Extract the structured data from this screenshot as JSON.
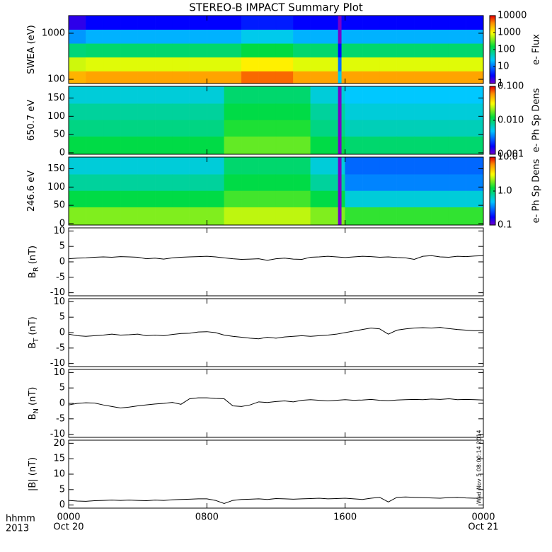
{
  "title": "STEREO-B IMPACT Summary Plot",
  "xaxis": {
    "xlim": [
      0,
      24
    ],
    "xticks": [
      {
        "value": 0,
        "label": "0000"
      },
      {
        "value": 8,
        "label": "0800"
      },
      {
        "value": 16,
        "label": "1600"
      },
      {
        "value": 24,
        "label": "0000"
      }
    ],
    "dates": [
      {
        "value": 0,
        "label": "Oct 20"
      },
      {
        "value": 24,
        "label": "Oct 21"
      }
    ],
    "unit_label": "hhmm",
    "year_label": "2013"
  },
  "stamp": "Wed Nov  5 08:00:14 2014",
  "chart_data": [
    {
      "type": "heatmap",
      "ylabel": "SWEA (eV)",
      "ylog": true,
      "ylim": [
        81,
        2420
      ],
      "yticks": [
        100,
        1000
      ],
      "x_bins": [
        0,
        1,
        2,
        3,
        4,
        5,
        6,
        7,
        8,
        9,
        10,
        11,
        12,
        13,
        14,
        15,
        15.6,
        15.8,
        16,
        17,
        18,
        19,
        20,
        21,
        22,
        23,
        24
      ],
      "y_bins": [
        81,
        150,
        300,
        600,
        1200,
        2420
      ],
      "z": [
        [
          2500,
          700,
          90,
          15,
          2
        ],
        [
          3000,
          800,
          100,
          20,
          3
        ],
        [
          3000,
          800,
          100,
          20,
          3
        ],
        [
          3000,
          800,
          100,
          20,
          3
        ],
        [
          3000,
          800,
          100,
          20,
          3
        ],
        [
          3000,
          800,
          100,
          20,
          3
        ],
        [
          3000,
          800,
          100,
          20,
          3
        ],
        [
          3000,
          800,
          100,
          20,
          3
        ],
        [
          3000,
          800,
          100,
          20,
          3
        ],
        [
          3000,
          800,
          100,
          20,
          3
        ],
        [
          5000,
          1200,
          150,
          30,
          4
        ],
        [
          5000,
          1200,
          150,
          30,
          4
        ],
        [
          5000,
          1200,
          150,
          30,
          4
        ],
        [
          3000,
          800,
          100,
          20,
          3
        ],
        [
          3000,
          800,
          100,
          20,
          3
        ],
        [
          3000,
          800,
          100,
          20,
          3
        ],
        [
          30,
          10,
          3,
          1,
          1
        ],
        [
          3000,
          800,
          100,
          20,
          3
        ],
        [
          3000,
          800,
          100,
          20,
          3
        ],
        [
          3000,
          800,
          100,
          20,
          3
        ],
        [
          3000,
          800,
          100,
          20,
          3
        ],
        [
          3000,
          800,
          100,
          20,
          3
        ],
        [
          3000,
          800,
          100,
          20,
          3
        ],
        [
          3000,
          800,
          100,
          20,
          3
        ],
        [
          3000,
          800,
          100,
          20,
          3
        ],
        [
          3000,
          800,
          100,
          20,
          3
        ]
      ],
      "zlim": [
        1,
        10000
      ],
      "zlog": true,
      "colormap": "rainbow",
      "colorbar_label": "e- Flux",
      "colorbar_ticks": [
        1,
        10,
        100,
        1000,
        10000
      ]
    },
    {
      "type": "heatmap",
      "ylabel": "650.7 eV",
      "ylog": false,
      "ylim": [
        -4,
        182
      ],
      "yticks": [
        0,
        50,
        100,
        150
      ],
      "x_bins": [
        0,
        1,
        2,
        3,
        4,
        5,
        6,
        7,
        8,
        9,
        10,
        11,
        12,
        13,
        14,
        15,
        15.6,
        15.8,
        16,
        17,
        18,
        19,
        20,
        21,
        22,
        23,
        24
      ],
      "y_bins": [
        -4,
        45,
        90,
        135,
        182
      ],
      "z": [
        [
          0.012,
          0.009,
          0.008,
          0.006
        ],
        [
          0.012,
          0.009,
          0.008,
          0.006
        ],
        [
          0.012,
          0.009,
          0.008,
          0.006
        ],
        [
          0.012,
          0.009,
          0.008,
          0.006
        ],
        [
          0.012,
          0.009,
          0.008,
          0.006
        ],
        [
          0.012,
          0.009,
          0.008,
          0.006
        ],
        [
          0.012,
          0.009,
          0.008,
          0.006
        ],
        [
          0.012,
          0.009,
          0.008,
          0.006
        ],
        [
          0.012,
          0.009,
          0.008,
          0.006
        ],
        [
          0.018,
          0.014,
          0.012,
          0.01
        ],
        [
          0.018,
          0.014,
          0.012,
          0.01
        ],
        [
          0.018,
          0.014,
          0.012,
          0.01
        ],
        [
          0.018,
          0.014,
          0.012,
          0.01
        ],
        [
          0.018,
          0.014,
          0.012,
          0.01
        ],
        [
          0.012,
          0.009,
          0.008,
          0.006
        ],
        [
          0.012,
          0.009,
          0.008,
          0.006
        ],
        [
          0.001,
          0.001,
          0.001,
          0.001
        ],
        [
          0.012,
          0.009,
          0.008,
          0.006
        ],
        [
          0.01,
          0.007,
          0.006,
          0.005
        ],
        [
          0.01,
          0.007,
          0.006,
          0.005
        ],
        [
          0.01,
          0.007,
          0.006,
          0.005
        ],
        [
          0.01,
          0.007,
          0.006,
          0.005
        ],
        [
          0.01,
          0.007,
          0.006,
          0.005
        ],
        [
          0.01,
          0.007,
          0.006,
          0.005
        ],
        [
          0.01,
          0.007,
          0.006,
          0.005
        ],
        [
          0.01,
          0.007,
          0.006,
          0.005
        ]
      ],
      "zlim": [
        0.001,
        0.1
      ],
      "zlog": true,
      "colormap": "rainbow",
      "colorbar_label": "e- Ph Sp Dens",
      "colorbar_ticks": [
        {
          "value": 0.001,
          "label": "0.001"
        },
        {
          "value": 0.01,
          "label": "0.010"
        },
        {
          "value": 0.1,
          "label": "0.100"
        }
      ]
    },
    {
      "type": "heatmap",
      "ylabel": "246.6 eV",
      "ylog": false,
      "ylim": [
        -4,
        182
      ],
      "yticks": [
        0,
        50,
        100,
        150
      ],
      "x_bins": [
        0,
        1,
        2,
        3,
        4,
        5,
        6,
        7,
        8,
        9,
        10,
        11,
        12,
        13,
        14,
        15,
        15.6,
        15.8,
        16,
        17,
        18,
        19,
        20,
        21,
        22,
        23,
        24
      ],
      "y_bins": [
        -4,
        45,
        90,
        135,
        182
      ],
      "z": [
        [
          2,
          1.2,
          0.8,
          0.6
        ],
        [
          2,
          1.2,
          0.8,
          0.6
        ],
        [
          2,
          1.2,
          0.8,
          0.6
        ],
        [
          2,
          1.2,
          0.8,
          0.6
        ],
        [
          2,
          1.2,
          0.8,
          0.6
        ],
        [
          2,
          1.2,
          0.8,
          0.6
        ],
        [
          2,
          1.2,
          0.8,
          0.6
        ],
        [
          2,
          1.2,
          0.8,
          0.6
        ],
        [
          2,
          1.2,
          0.8,
          0.6
        ],
        [
          2.5,
          1.6,
          1.2,
          1
        ],
        [
          2.5,
          1.6,
          1.2,
          1
        ],
        [
          2.5,
          1.6,
          1.2,
          1
        ],
        [
          2.5,
          1.6,
          1.2,
          1
        ],
        [
          2.5,
          1.6,
          1.2,
          1
        ],
        [
          2,
          1.2,
          0.8,
          0.6
        ],
        [
          2,
          1.2,
          0.8,
          0.6
        ],
        [
          0.1,
          0.1,
          0.1,
          0.1
        ],
        [
          2,
          1.2,
          0.8,
          0.6
        ],
        [
          1.5,
          0.6,
          0.35,
          0.3
        ],
        [
          1.5,
          0.6,
          0.35,
          0.3
        ],
        [
          1.5,
          0.6,
          0.35,
          0.3
        ],
        [
          1.5,
          0.6,
          0.35,
          0.3
        ],
        [
          1.5,
          0.6,
          0.35,
          0.3
        ],
        [
          1.5,
          0.6,
          0.35,
          0.3
        ],
        [
          1.5,
          0.6,
          0.35,
          0.3
        ],
        [
          1.5,
          0.6,
          0.35,
          0.3
        ]
      ],
      "zlim": [
        0.1,
        10
      ],
      "zlog": true,
      "colormap": "rainbow",
      "colorbar_label": "e- Ph Sp Dens",
      "colorbar_ticks": [
        {
          "value": 0.1,
          "label": "0.1"
        },
        {
          "value": 1,
          "label": "1.0"
        },
        {
          "value": 10,
          "label": "10.0"
        }
      ]
    },
    {
      "type": "line",
      "ylabel": "B",
      "ylabel_sub": "R",
      "ylabel_unit": "(nT)",
      "ylim": [
        -11,
        11
      ],
      "yticks": [
        -10,
        -5,
        0,
        5,
        10
      ],
      "color": "#000000",
      "x": [
        0,
        0.5,
        1,
        1.5,
        2,
        2.5,
        3,
        3.5,
        4,
        4.5,
        5,
        5.5,
        6,
        6.5,
        7,
        7.5,
        8,
        8.5,
        9,
        9.5,
        10,
        10.5,
        11,
        11.5,
        12,
        12.5,
        13,
        13.5,
        14,
        14.5,
        15,
        15.5,
        16,
        16.5,
        17,
        17.5,
        18,
        18.5,
        19,
        19.5,
        20,
        20.5,
        21,
        21.5,
        22,
        22.5,
        23,
        23.5,
        24
      ],
      "values": [
        1.0,
        1.2,
        1.3,
        1.5,
        1.6,
        1.5,
        1.7,
        1.6,
        1.5,
        1.0,
        1.2,
        0.9,
        1.3,
        1.5,
        1.6,
        1.7,
        1.8,
        1.6,
        1.3,
        1.0,
        0.8,
        0.9,
        1.0,
        0.5,
        1.0,
        1.2,
        0.9,
        0.8,
        1.5,
        1.6,
        1.8,
        1.6,
        1.4,
        1.6,
        1.8,
        1.7,
        1.5,
        1.6,
        1.4,
        1.3,
        0.8,
        1.8,
        2.0,
        1.6,
        1.5,
        1.8,
        1.7,
        1.9,
        2.0
      ]
    },
    {
      "type": "line",
      "ylabel": "B",
      "ylabel_sub": "T",
      "ylabel_unit": "(nT)",
      "ylim": [
        -11,
        11
      ],
      "yticks": [
        -10,
        -5,
        0,
        5,
        10
      ],
      "color": "#000000",
      "x": [
        0,
        0.5,
        1,
        1.5,
        2,
        2.5,
        3,
        3.5,
        4,
        4.5,
        5,
        5.5,
        6,
        6.5,
        7,
        7.5,
        8,
        8.5,
        9,
        9.5,
        10,
        10.5,
        11,
        11.5,
        12,
        12.5,
        13,
        13.5,
        14,
        14.5,
        15,
        15.5,
        16,
        16.5,
        17,
        17.5,
        18,
        18.5,
        19,
        19.5,
        20,
        20.5,
        21,
        21.5,
        22,
        22.5,
        23,
        23.5,
        24
      ],
      "values": [
        -0.5,
        -1.0,
        -1.2,
        -1.0,
        -0.8,
        -0.5,
        -0.8,
        -0.7,
        -0.5,
        -1.0,
        -0.8,
        -1.0,
        -0.6,
        -0.3,
        -0.2,
        0.2,
        0.3,
        0.0,
        -0.8,
        -1.2,
        -1.5,
        -1.8,
        -2.0,
        -1.5,
        -1.8,
        -1.4,
        -1.2,
        -1.0,
        -1.2,
        -1.0,
        -0.8,
        -0.5,
        0.0,
        0.5,
        1.0,
        1.5,
        1.2,
        -0.5,
        0.8,
        1.2,
        1.5,
        1.6,
        1.5,
        1.7,
        1.3,
        1.0,
        0.8,
        0.6,
        0.7
      ]
    },
    {
      "type": "line",
      "ylabel": "B",
      "ylabel_sub": "N",
      "ylabel_unit": "(nT)",
      "ylim": [
        -11,
        11
      ],
      "yticks": [
        -10,
        -5,
        0,
        5,
        10
      ],
      "color": "#000000",
      "x": [
        0,
        0.5,
        1,
        1.5,
        2,
        2.5,
        3,
        3.5,
        4,
        4.5,
        5,
        5.5,
        6,
        6.5,
        7,
        7.5,
        8,
        8.5,
        9,
        9.5,
        10,
        10.5,
        11,
        11.5,
        12,
        12.5,
        13,
        13.5,
        14,
        14.5,
        15,
        15.5,
        16,
        16.5,
        17,
        17.5,
        18,
        18.5,
        19,
        19.5,
        20,
        20.5,
        21,
        21.5,
        22,
        22.5,
        23,
        23.5,
        24
      ],
      "values": [
        -0.5,
        0.0,
        0.2,
        0.1,
        -0.5,
        -1.0,
        -1.5,
        -1.2,
        -0.8,
        -0.5,
        -0.2,
        0.0,
        0.3,
        -0.3,
        1.5,
        1.8,
        1.8,
        1.6,
        1.5,
        -0.8,
        -1.0,
        -0.5,
        0.5,
        0.3,
        0.6,
        0.8,
        0.5,
        1.0,
        1.2,
        1.0,
        0.8,
        1.0,
        1.2,
        1.0,
        1.1,
        1.3,
        1.0,
        0.9,
        1.1,
        1.2,
        1.3,
        1.2,
        1.4,
        1.3,
        1.5,
        1.2,
        1.3,
        1.2,
        1.1
      ]
    },
    {
      "type": "line",
      "ylabel": "|B| (nT)",
      "ylim": [
        -1,
        21
      ],
      "yticks": [
        0,
        5,
        10,
        15,
        20
      ],
      "color": "#000000",
      "x": [
        0,
        0.5,
        1,
        1.5,
        2,
        2.5,
        3,
        3.5,
        4,
        4.5,
        5,
        5.5,
        6,
        6.5,
        7,
        7.5,
        8,
        8.5,
        9,
        9.5,
        10,
        10.5,
        11,
        11.5,
        12,
        12.5,
        13,
        13.5,
        14,
        14.5,
        15,
        15.5,
        16,
        16.5,
        17,
        17.5,
        18,
        18.5,
        19,
        19.5,
        20,
        20.5,
        21,
        21.5,
        22,
        22.5,
        23,
        23.5,
        24
      ],
      "values": [
        1.5,
        1.3,
        1.2,
        1.4,
        1.5,
        1.6,
        1.5,
        1.6,
        1.5,
        1.4,
        1.6,
        1.5,
        1.7,
        1.8,
        1.9,
        2.0,
        2.0,
        1.5,
        0.5,
        1.5,
        1.8,
        1.9,
        2.0,
        1.8,
        2.1,
        2.0,
        1.9,
        2.0,
        2.1,
        2.2,
        2.0,
        2.1,
        2.2,
        2.0,
        1.8,
        2.2,
        2.5,
        1.0,
        2.5,
        2.6,
        2.5,
        2.4,
        2.3,
        2.2,
        2.4,
        2.5,
        2.3,
        2.2,
        2.3
      ]
    }
  ]
}
